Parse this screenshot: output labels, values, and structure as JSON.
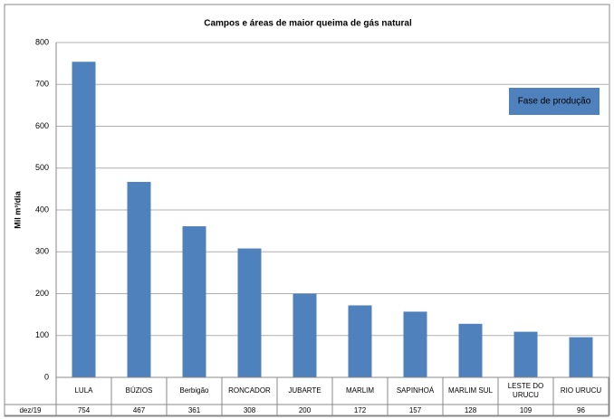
{
  "chart_data": {
    "type": "bar",
    "title": "Campos e áreas de maior queima de gás natural",
    "y_label": "Mil m³/dia",
    "annotation": "Fase de produção",
    "categories": [
      "LULA",
      "BÚZIOS",
      "Berbigão",
      "RONCADOR",
      "JUBARTE",
      "MARLIM",
      "SAPINHOÁ",
      "MARLIM SUL",
      "LESTE DO URUCU",
      "RIO URUCU"
    ],
    "series": [
      {
        "name": "dez/19",
        "color": "#4f81bd",
        "values": [
          754,
          467,
          361,
          308,
          200,
          172,
          157,
          128,
          109,
          96
        ]
      }
    ],
    "ylim": [
      0,
      800
    ],
    "yticks": [
      0,
      100,
      200,
      300,
      400,
      500,
      600,
      700,
      800
    ],
    "grid": true
  }
}
